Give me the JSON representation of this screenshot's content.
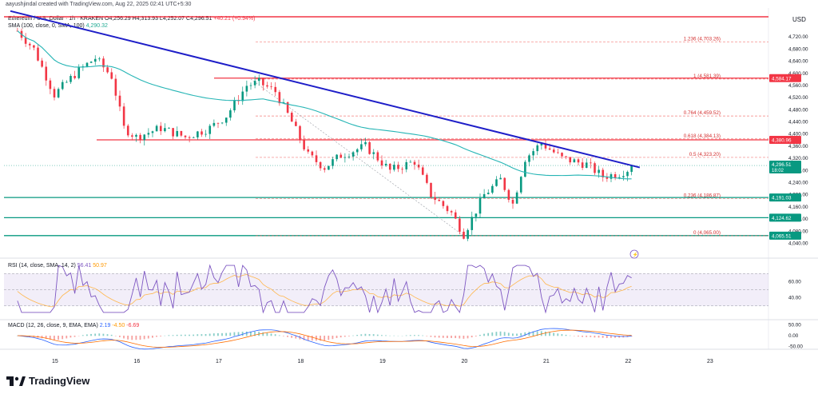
{
  "header": {
    "created_by": "aayushjindal created with TradingView.com, Aug 22, 2025 02:41 UTC+5:30",
    "symbol_line": "Ethereum / U.S. Dollar · 1h · KRAKEN",
    "open": "O4,256.29",
    "high": "H4,313.93",
    "low": "L4,252.07",
    "close": "C4,296.51",
    "change": "+40.21 (+0.94%)",
    "sma_label": "SMA (100, close, 0, SMA, 100)",
    "sma_value": "4,290.32"
  },
  "currency": "USD",
  "rsi_legend": {
    "label": "RSI (14, close, SMA, 14, 2)",
    "v1": "56.41",
    "v2": "50.97"
  },
  "macd_legend": {
    "label": "MACD (12, 26, close, 9, EMA, EMA)",
    "v1": "2.19",
    "v2": "-4.50",
    "v3": "-6.69"
  },
  "brand": "TradingView",
  "colors": {
    "up": "#089981",
    "down": "#f23645",
    "trend": "#1e1ec8",
    "sma": "#26b5b5",
    "rsi": "#7e57c2"
  },
  "chart_data": {
    "type": "candlestick",
    "y_axis_ticks": [
      "4,720.00",
      "4,680.00",
      "4,640.00",
      "4,600.00",
      "4,560.00",
      "4,520.00",
      "4,480.00",
      "4,440.00",
      "4,400.00",
      "4,360.00",
      "4,320.00",
      "4,280.00",
      "4,240.00",
      "4,200.00",
      "4,160.00",
      "4,120.00",
      "4,080.00",
      "4,040.00"
    ],
    "ylim": [
      4015,
      4810
    ],
    "x_ticks": [
      "15",
      "16",
      "17",
      "18",
      "19",
      "20",
      "21",
      "22",
      "23"
    ],
    "fib_levels": [
      {
        "label": "1.236 (4,703.26)",
        "value": 4703.26
      },
      {
        "label": "1 (4,581.39)",
        "value": 4581.39
      },
      {
        "label": "0.764 (4,459.52)",
        "value": 4459.52
      },
      {
        "label": "0.618 (4,384.13)",
        "value": 4384.13
      },
      {
        "label": "0.5 (4,323.20)",
        "value": 4323.2
      },
      {
        "label": "0.236 (4,186.87)",
        "value": 4186.87
      },
      {
        "label": "0 (4,065.00)",
        "value": 4065.0
      }
    ],
    "horizontal_levels": [
      {
        "value": 4584.17,
        "label": "4,584.17",
        "color": "#f23645"
      },
      {
        "value": 4380.96,
        "label": "4,380.96",
        "color": "#f23645"
      },
      {
        "value": 4191.03,
        "label": "4,191.03",
        "color": "#089981"
      },
      {
        "value": 4124.62,
        "label": "4,124.62",
        "color": "#089981"
      },
      {
        "value": 4065.51,
        "label": "4,065.51",
        "color": "#089981"
      }
    ],
    "price_label": {
      "value": 4296.51,
      "label": "4,296.51",
      "countdown": "18:02"
    },
    "trend_line": {
      "from": [
        15.0,
        4800
      ],
      "to": [
        22.15,
        4290
      ]
    },
    "rsi_ticks": [
      "60.00",
      "40.00"
    ],
    "macd_ticks": [
      "50.00",
      "0.00",
      "-50.00"
    ]
  }
}
